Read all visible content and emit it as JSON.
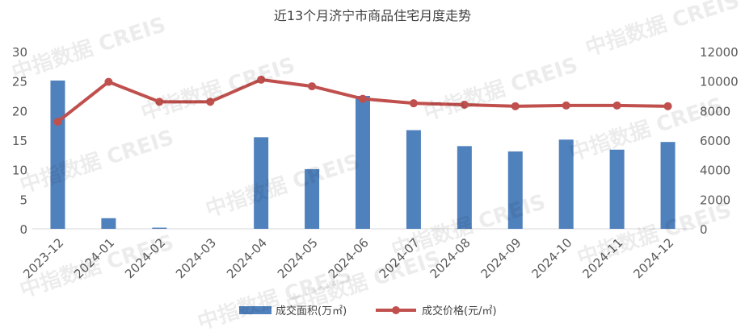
{
  "chart_data": {
    "type": "bar",
    "title": "近13个月济宁市商品住宅月度走势",
    "categories": [
      "2023-12",
      "2024-01",
      "2024-02",
      "2024-03",
      "2024-04",
      "2024-05",
      "2024-06",
      "2024-07",
      "2024-08",
      "2024-09",
      "2024-10",
      "2024-11",
      "2024-12"
    ],
    "series": [
      {
        "name": "成交面积(万㎡)",
        "type": "bar",
        "axis": "left",
        "color": "#4f81bd",
        "values": [
          25.1,
          1.8,
          0.2,
          0,
          15.5,
          10.1,
          22.5,
          16.7,
          14.0,
          13.1,
          15.1,
          13.4,
          14.7
        ]
      },
      {
        "name": "成交价格(元/㎡)",
        "type": "line",
        "axis": "right",
        "color": "#c0504d",
        "values": [
          7250,
          9950,
          8600,
          8600,
          10100,
          9650,
          8800,
          8500,
          8400,
          8300,
          8350,
          8350,
          8300
        ]
      }
    ],
    "y_left": {
      "min": 0,
      "max": 30,
      "ticks": [
        "0",
        "5",
        "10",
        "15",
        "20",
        "25",
        "30"
      ]
    },
    "y_right": {
      "min": 0,
      "max": 12000,
      "ticks": [
        "0",
        "2000",
        "4000",
        "6000",
        "8000",
        "10000",
        "12000"
      ]
    },
    "legend_position": "bottom",
    "grid": false
  },
  "watermark": "中指数据 CREIS"
}
